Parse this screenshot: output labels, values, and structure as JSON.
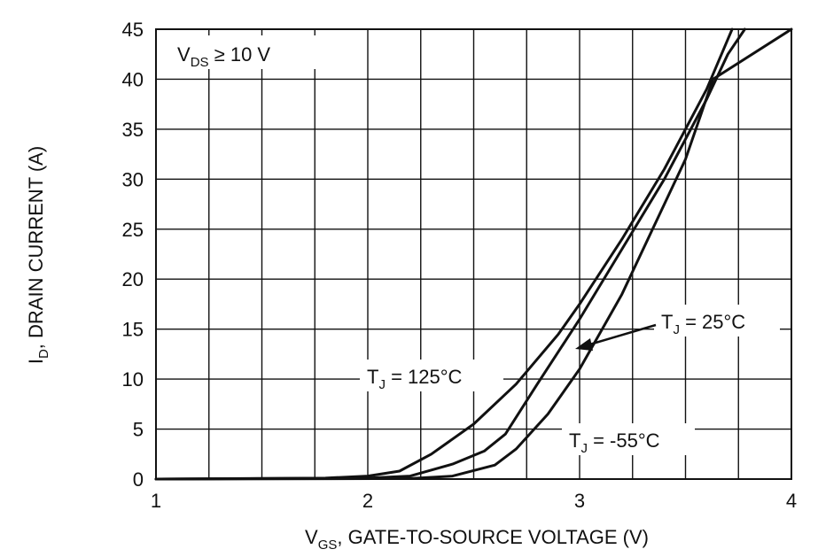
{
  "chart_data": {
    "type": "line",
    "xlabel_main": "V",
    "xlabel_sub": "GS",
    "xlabel_rest": ", GATE-TO-SOURCE VOLTAGE (V)",
    "ylabel_main": "I",
    "ylabel_sub": "D",
    "ylabel_rest": ", DRAIN CURRENT (A)",
    "xlim": [
      1,
      4
    ],
    "ylim": [
      0,
      45
    ],
    "x_ticks": [
      1,
      2,
      3,
      4
    ],
    "y_ticks": [
      0,
      5,
      10,
      15,
      20,
      25,
      30,
      35,
      40,
      45
    ],
    "minor_x_step": 0.25,
    "grid": true,
    "condition": {
      "main": "V",
      "sub": "DS",
      "rest": " ≥ 10 V"
    },
    "series": [
      {
        "label_main": "T",
        "label_sub": "J",
        "label_rest": " = 125°C",
        "points": [
          [
            1.0,
            0
          ],
          [
            1.8,
            0.1
          ],
          [
            2.0,
            0.3
          ],
          [
            2.15,
            0.8
          ],
          [
            2.3,
            2.5
          ],
          [
            2.5,
            5.5
          ],
          [
            2.7,
            9.5
          ],
          [
            2.9,
            14.5
          ],
          [
            3.0,
            17.5
          ],
          [
            3.2,
            24
          ],
          [
            3.4,
            31
          ],
          [
            3.6,
            39
          ],
          [
            3.7,
            44
          ],
          [
            3.72,
            45
          ]
        ]
      },
      {
        "label_main": "T",
        "label_sub": "J",
        "label_rest": " = 25°C",
        "points": [
          [
            1.0,
            0
          ],
          [
            2.0,
            0.1
          ],
          [
            2.2,
            0.3
          ],
          [
            2.4,
            1.5
          ],
          [
            2.55,
            2.8
          ],
          [
            2.65,
            4.5
          ],
          [
            2.8,
            9.5
          ],
          [
            3.0,
            16
          ],
          [
            3.2,
            23
          ],
          [
            3.4,
            30
          ],
          [
            3.6,
            38
          ],
          [
            3.7,
            42.5
          ],
          [
            3.78,
            45
          ]
        ]
      },
      {
        "label_main": "T",
        "label_sub": "J",
        "label_rest": " = -55°C",
        "points": [
          [
            1.0,
            0
          ],
          [
            2.2,
            0.05
          ],
          [
            2.4,
            0.3
          ],
          [
            2.6,
            1.4
          ],
          [
            2.7,
            3
          ],
          [
            2.85,
            6.5
          ],
          [
            3.0,
            11
          ],
          [
            3.2,
            18.5
          ],
          [
            3.4,
            27.5
          ],
          [
            3.5,
            32
          ],
          [
            3.63,
            40
          ],
          [
            4.0,
            45
          ]
        ]
      }
    ]
  }
}
